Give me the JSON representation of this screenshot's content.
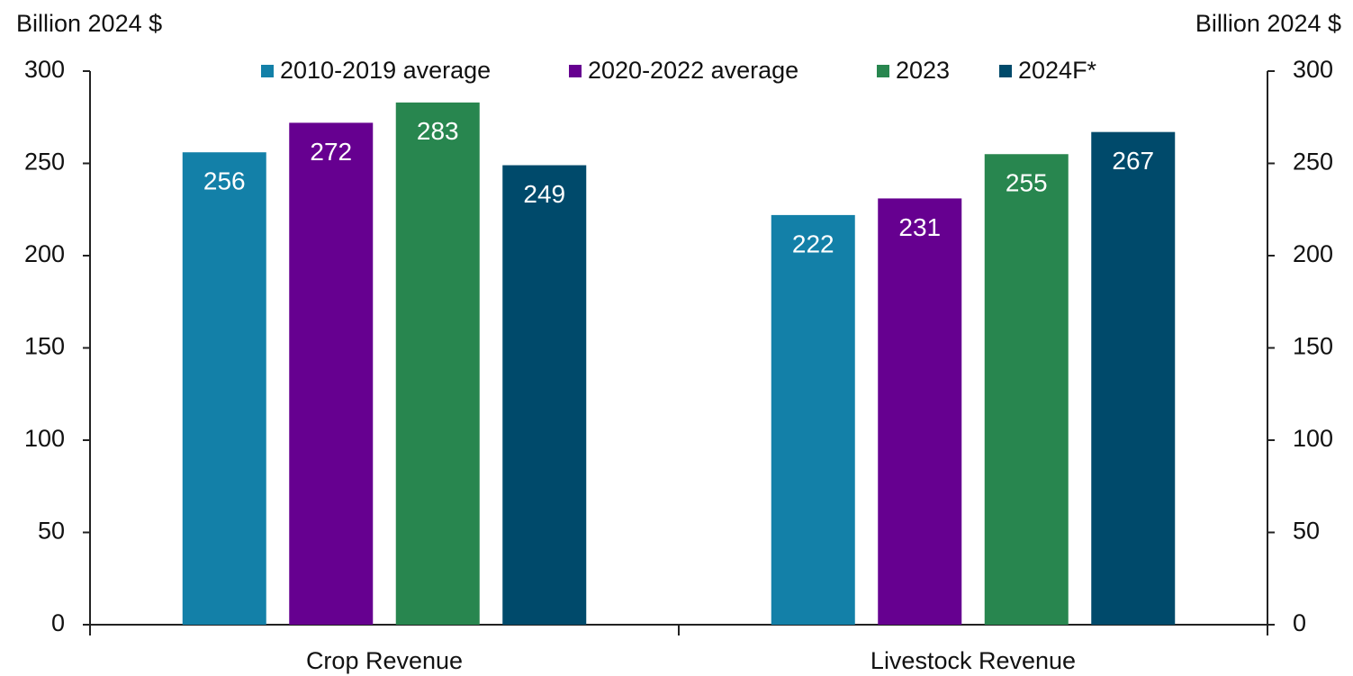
{
  "chart_data": {
    "type": "bar",
    "ylabel": "Billion 2024 $",
    "y2label": "Billion 2024 $",
    "categories": [
      "Crop Revenue",
      "Livestock Revenue"
    ],
    "series": [
      {
        "name": "2010-2019 average",
        "color": "#1380a8",
        "values": [
          256,
          222
        ]
      },
      {
        "name": "2020-2022 average",
        "color": "#660090",
        "values": [
          272,
          231
        ]
      },
      {
        "name": "2023",
        "color": "#28864f",
        "values": [
          283,
          255
        ]
      },
      {
        "name": "2024F*",
        "color": "#004a6b",
        "values": [
          249,
          267
        ]
      }
    ],
    "ylim": [
      0,
      300
    ],
    "yticks": [
      0,
      50,
      100,
      150,
      200,
      250,
      300
    ],
    "y2lim": [
      0,
      300
    ],
    "y2ticks": [
      0,
      50,
      100,
      150,
      200,
      250,
      300
    ],
    "grid": false,
    "legend": "top"
  }
}
